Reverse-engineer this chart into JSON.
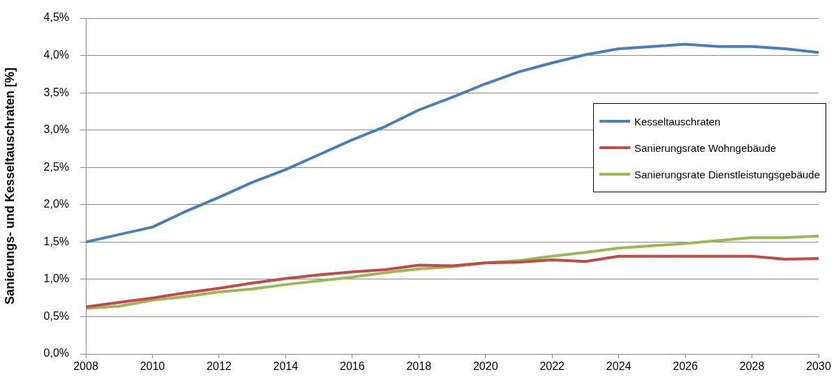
{
  "chart_data": {
    "type": "line",
    "ylabel": "Sanierungs- und Kesseltauschraten [%]",
    "x": [
      2008,
      2009,
      2010,
      2011,
      2012,
      2013,
      2014,
      2015,
      2016,
      2017,
      2018,
      2019,
      2020,
      2021,
      2022,
      2023,
      2024,
      2025,
      2026,
      2027,
      2028,
      2029,
      2030
    ],
    "series": [
      {
        "name": "Kesseltauschraten",
        "color": "#4a7ebb",
        "values": [
          1.5,
          1.6,
          1.7,
          1.91,
          2.1,
          2.3,
          2.47,
          2.67,
          2.87,
          3.05,
          3.27,
          3.44,
          3.62,
          3.78,
          3.9,
          4.01,
          4.09,
          4.12,
          4.15,
          4.12,
          4.12,
          4.09,
          4.04
        ]
      },
      {
        "name": "Sanierungsrate Wohngebäude",
        "color": "#be4b48",
        "values": [
          0.63,
          0.69,
          0.75,
          0.82,
          0.88,
          0.95,
          1.01,
          1.06,
          1.1,
          1.13,
          1.19,
          1.18,
          1.22,
          1.23,
          1.26,
          1.24,
          1.31,
          1.31,
          1.31,
          1.31,
          1.31,
          1.27,
          1.28
        ]
      },
      {
        "name": "Sanierungsrate Dienstleistungsgebäude",
        "color": "#98b954",
        "values": [
          0.61,
          0.64,
          0.72,
          0.77,
          0.83,
          0.87,
          0.93,
          0.98,
          1.03,
          1.09,
          1.14,
          1.17,
          1.22,
          1.25,
          1.31,
          1.36,
          1.42,
          1.45,
          1.48,
          1.52,
          1.56,
          1.56,
          1.58
        ]
      }
    ],
    "xlim": [
      2008,
      2030
    ],
    "xticks": [
      2008,
      2010,
      2012,
      2014,
      2016,
      2018,
      2020,
      2022,
      2024,
      2026,
      2028,
      2030
    ],
    "ylim": [
      0,
      4.5
    ],
    "yticks": [
      {
        "value": 0,
        "label": "0,0%"
      },
      {
        "value": 0.5,
        "label": "0,5%"
      },
      {
        "value": 1,
        "label": "1,0%"
      },
      {
        "value": 1.5,
        "label": "1,5%"
      },
      {
        "value": 2,
        "label": "2,0%"
      },
      {
        "value": 2.5,
        "label": "2,5%"
      },
      {
        "value": 3,
        "label": "3,0%"
      },
      {
        "value": 3.5,
        "label": "3,5%"
      },
      {
        "value": 4,
        "label": "4,0%"
      },
      {
        "value": 4.5,
        "label": "4,5%"
      }
    ],
    "grid": "y",
    "legend": "right",
    "marker": "none",
    "line_style": "solid"
  }
}
